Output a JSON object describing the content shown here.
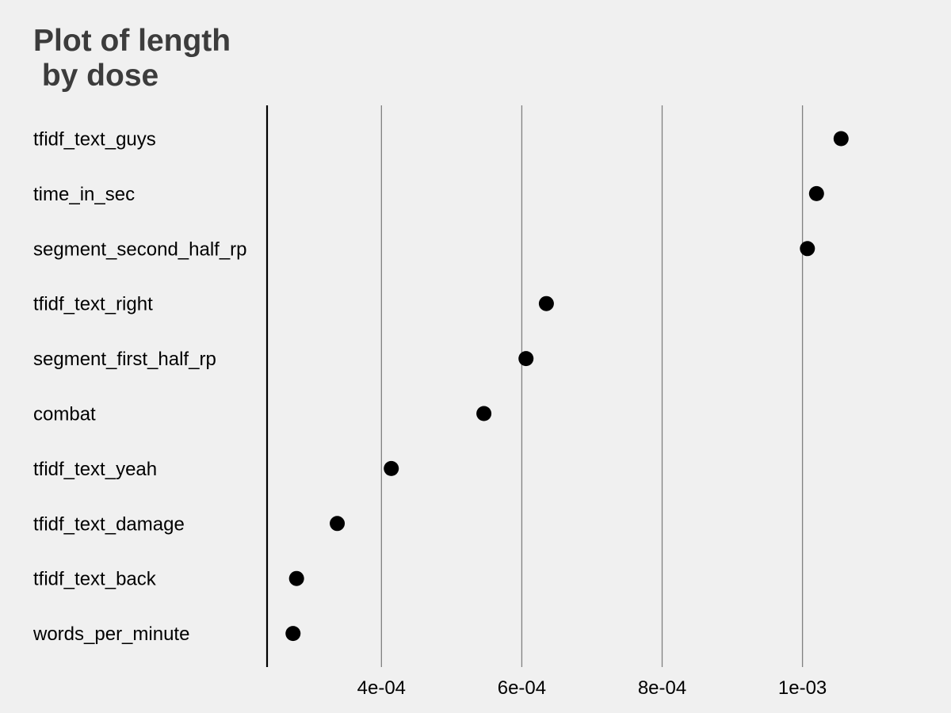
{
  "chart_data": {
    "type": "scatter",
    "title": "Plot of length\n by dose",
    "categories": [
      "tfidf_text_guys",
      "time_in_sec",
      "segment_second_half_rp",
      "tfidf_text_right",
      "segment_first_half_rp",
      "combat",
      "tfidf_text_yeah",
      "tfidf_text_damage",
      "tfidf_text_back",
      "words_per_minute"
    ],
    "values": [
      0.001055,
      0.00102,
      0.001007,
      0.000635,
      0.000606,
      0.000546,
      0.000414,
      0.000337,
      0.000279,
      0.000274
    ],
    "xlim": [
      0.000237,
      0.00111
    ],
    "xticks": [
      0.0004,
      0.0006,
      0.0008,
      0.001
    ],
    "xtick_labels": [
      "4e-04",
      "6e-04",
      "8e-04",
      "1e-03"
    ],
    "grid": "vertical major",
    "xlabel": "",
    "ylabel": "",
    "point_color": "#000000",
    "grid_color": "#808080"
  }
}
